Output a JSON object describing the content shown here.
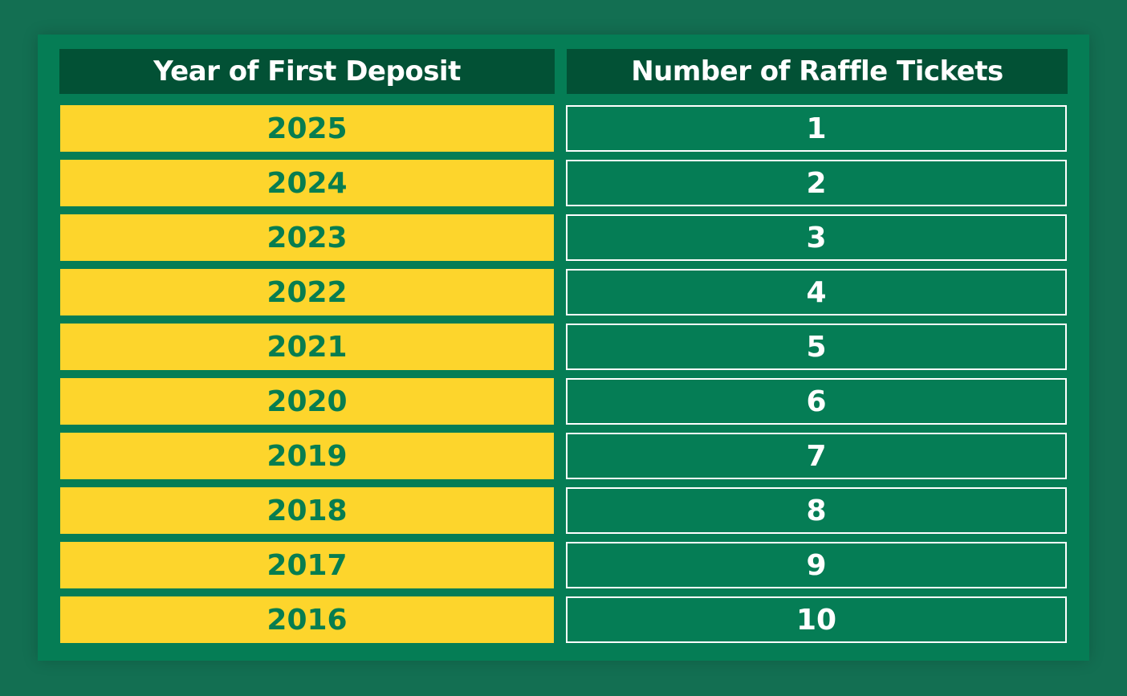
{
  "headers": {
    "year": "Year of First Deposit",
    "tickets": "Number of Raffle Tickets"
  },
  "rows": [
    {
      "year": "2025",
      "tickets": "1"
    },
    {
      "year": "2024",
      "tickets": "2"
    },
    {
      "year": "2023",
      "tickets": "3"
    },
    {
      "year": "2022",
      "tickets": "4"
    },
    {
      "year": "2021",
      "tickets": "5"
    },
    {
      "year": "2020",
      "tickets": "6"
    },
    {
      "year": "2019",
      "tickets": "7"
    },
    {
      "year": "2018",
      "tickets": "8"
    },
    {
      "year": "2017",
      "tickets": "9"
    },
    {
      "year": "2016",
      "tickets": "10"
    }
  ],
  "colors": {
    "background": "#136f52",
    "panel": "#057d55",
    "header": "#025135",
    "year_cell": "#fdd52c",
    "year_text": "#077d50",
    "ticket_text": "#ffffff"
  }
}
